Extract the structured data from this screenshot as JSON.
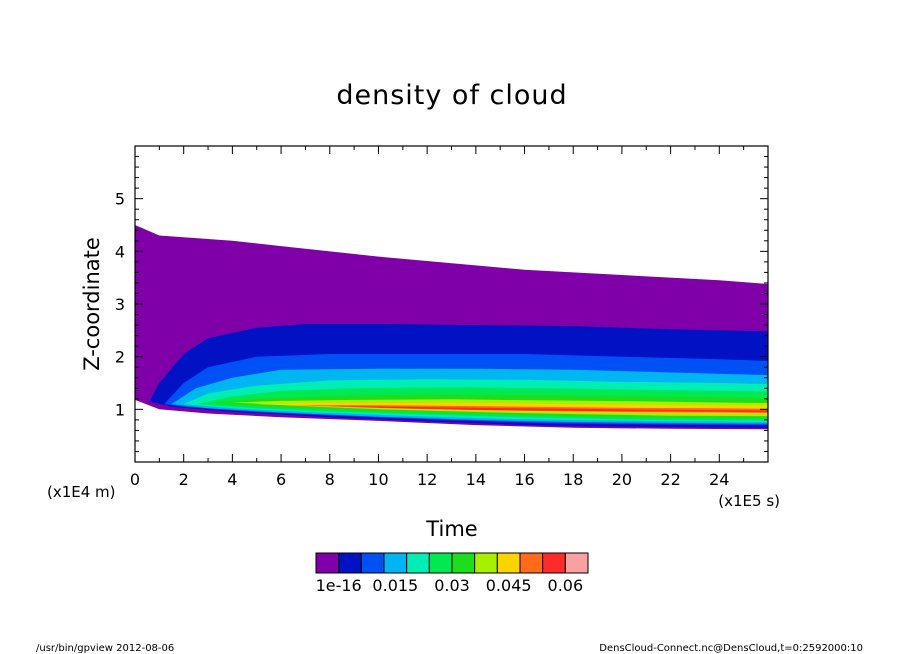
{
  "chart_data": {
    "type": "contour",
    "title": "density of cloud",
    "xlabel": "Time",
    "ylabel": "Z-coordinate",
    "x_unit": "(x1E5 s)",
    "y_unit": "(x1E4 m)",
    "xlim": [
      0,
      26
    ],
    "ylim": [
      0,
      6
    ],
    "x_ticks": [
      "0",
      "2",
      "4",
      "6",
      "8",
      "10",
      "12",
      "14",
      "16",
      "18",
      "20",
      "22",
      "24"
    ],
    "y_ticks": [
      "1",
      "2",
      "3",
      "4",
      "5"
    ],
    "colorbar": {
      "colors": [
        "#7f00a8",
        "#0012c4",
        "#0051f5",
        "#00b6f2",
        "#00eeb5",
        "#00e852",
        "#1edd1c",
        "#a6f000",
        "#fbd400",
        "#ff6a1c",
        "#ff2a2a",
        "#f9a0a0"
      ],
      "labels": [
        "1e-16",
        "0.015",
        "0.03",
        "0.045",
        "0.06"
      ]
    },
    "contours": [
      {
        "level": 0,
        "upper": [
          [
            0,
            4.5
          ],
          [
            1,
            4.3
          ],
          [
            4,
            4.2
          ],
          [
            6,
            4.1
          ],
          [
            10,
            3.9
          ],
          [
            16,
            3.65
          ],
          [
            20,
            3.55
          ],
          [
            24,
            3.45
          ],
          [
            26,
            3.38
          ]
        ],
        "lower": [
          [
            0,
            1.18
          ],
          [
            1,
            1.0
          ],
          [
            3,
            0.92
          ],
          [
            6,
            0.85
          ],
          [
            10,
            0.78
          ],
          [
            14,
            0.7
          ],
          [
            18,
            0.65
          ],
          [
            22,
            0.63
          ],
          [
            26,
            0.62
          ]
        ]
      },
      {
        "level": 1,
        "upper": [
          [
            0.6,
            1.15
          ],
          [
            1,
            1.5
          ],
          [
            2,
            2.05
          ],
          [
            3,
            2.35
          ],
          [
            5,
            2.55
          ],
          [
            7,
            2.62
          ],
          [
            10,
            2.62
          ],
          [
            14,
            2.6
          ],
          [
            18,
            2.58
          ],
          [
            22,
            2.52
          ],
          [
            26,
            2.48
          ]
        ],
        "lower": [
          [
            0.6,
            1.15
          ],
          [
            1.5,
            1.05
          ],
          [
            4,
            0.95
          ],
          [
            8,
            0.85
          ],
          [
            12,
            0.77
          ],
          [
            16,
            0.7
          ],
          [
            20,
            0.67
          ],
          [
            26,
            0.65
          ]
        ]
      },
      {
        "level": 2,
        "upper": [
          [
            1.2,
            1.1
          ],
          [
            2,
            1.5
          ],
          [
            3,
            1.8
          ],
          [
            5,
            2.0
          ],
          [
            8,
            2.05
          ],
          [
            12,
            2.05
          ],
          [
            16,
            2.05
          ],
          [
            20,
            2.0
          ],
          [
            24,
            1.95
          ],
          [
            26,
            1.92
          ]
        ],
        "lower": [
          [
            1.2,
            1.1
          ],
          [
            2,
            1.05
          ],
          [
            5,
            0.95
          ],
          [
            9,
            0.87
          ],
          [
            13,
            0.8
          ],
          [
            17,
            0.74
          ],
          [
            21,
            0.72
          ],
          [
            26,
            0.7
          ]
        ]
      },
      {
        "level": 3,
        "upper": [
          [
            1.5,
            1.1
          ],
          [
            2.5,
            1.4
          ],
          [
            4,
            1.6
          ],
          [
            6,
            1.75
          ],
          [
            10,
            1.77
          ],
          [
            14,
            1.77
          ],
          [
            18,
            1.75
          ],
          [
            22,
            1.7
          ],
          [
            26,
            1.65
          ]
        ],
        "lower": [
          [
            1.5,
            1.1
          ],
          [
            3,
            1.02
          ],
          [
            6,
            0.94
          ],
          [
            10,
            0.86
          ],
          [
            14,
            0.8
          ],
          [
            18,
            0.76
          ],
          [
            22,
            0.74
          ],
          [
            26,
            0.73
          ]
        ]
      },
      {
        "level": 4,
        "upper": [
          [
            2,
            1.1
          ],
          [
            3,
            1.3
          ],
          [
            5,
            1.45
          ],
          [
            8,
            1.55
          ],
          [
            12,
            1.57
          ],
          [
            16,
            1.56
          ],
          [
            20,
            1.52
          ],
          [
            24,
            1.5
          ],
          [
            26,
            1.48
          ]
        ],
        "lower": [
          [
            2,
            1.1
          ],
          [
            4,
            1.02
          ],
          [
            7,
            0.95
          ],
          [
            11,
            0.88
          ],
          [
            15,
            0.82
          ],
          [
            19,
            0.79
          ],
          [
            23,
            0.77
          ],
          [
            26,
            0.76
          ]
        ]
      },
      {
        "level": 5,
        "upper": [
          [
            2.5,
            1.1
          ],
          [
            4,
            1.25
          ],
          [
            6,
            1.35
          ],
          [
            9,
            1.4
          ],
          [
            13,
            1.42
          ],
          [
            17,
            1.4
          ],
          [
            21,
            1.37
          ],
          [
            24,
            1.35
          ],
          [
            26,
            1.34
          ]
        ],
        "lower": [
          [
            2.5,
            1.1
          ],
          [
            5,
            1.02
          ],
          [
            8,
            0.96
          ],
          [
            12,
            0.9
          ],
          [
            16,
            0.85
          ],
          [
            20,
            0.81
          ],
          [
            24,
            0.79
          ],
          [
            26,
            0.79
          ]
        ]
      },
      {
        "level": 6,
        "upper": [
          [
            3,
            1.12
          ],
          [
            5,
            1.2
          ],
          [
            8,
            1.25
          ],
          [
            12,
            1.28
          ],
          [
            16,
            1.27
          ],
          [
            20,
            1.25
          ],
          [
            24,
            1.23
          ],
          [
            26,
            1.22
          ]
        ],
        "lower": [
          [
            3,
            1.12
          ],
          [
            6,
            1.04
          ],
          [
            9,
            0.98
          ],
          [
            13,
            0.93
          ],
          [
            17,
            0.88
          ],
          [
            21,
            0.85
          ],
          [
            24,
            0.83
          ],
          [
            26,
            0.83
          ]
        ]
      },
      {
        "level": 7,
        "upper": [
          [
            4,
            1.13
          ],
          [
            6,
            1.16
          ],
          [
            9,
            1.18
          ],
          [
            13,
            1.19
          ],
          [
            17,
            1.17
          ],
          [
            21,
            1.15
          ],
          [
            24,
            1.13
          ],
          [
            26,
            1.12
          ]
        ],
        "lower": [
          [
            4,
            1.13
          ],
          [
            7,
            1.06
          ],
          [
            10,
            1.0
          ],
          [
            14,
            0.95
          ],
          [
            18,
            0.91
          ],
          [
            22,
            0.88
          ],
          [
            26,
            0.87
          ]
        ]
      },
      {
        "level": 8,
        "upper": [
          [
            5,
            1.1
          ],
          [
            7,
            1.12
          ],
          [
            10,
            1.12
          ],
          [
            14,
            1.12
          ],
          [
            18,
            1.1
          ],
          [
            22,
            1.08
          ],
          [
            26,
            1.07
          ]
        ],
        "lower": [
          [
            5,
            1.1
          ],
          [
            8,
            1.05
          ],
          [
            11,
            1.01
          ],
          [
            15,
            0.97
          ],
          [
            19,
            0.94
          ],
          [
            23,
            0.92
          ],
          [
            26,
            0.91
          ]
        ]
      },
      {
        "level": 9,
        "upper": [
          [
            6.5,
            1.08
          ],
          [
            9,
            1.08
          ],
          [
            12,
            1.07
          ],
          [
            16,
            1.05
          ],
          [
            20,
            1.03
          ],
          [
            24,
            1.02
          ],
          [
            26,
            1.01
          ]
        ],
        "lower": [
          [
            6.5,
            1.08
          ],
          [
            9,
            1.04
          ],
          [
            12,
            1.0
          ],
          [
            16,
            0.97
          ],
          [
            20,
            0.95
          ],
          [
            24,
            0.94
          ],
          [
            26,
            0.93
          ]
        ]
      },
      {
        "level": 10,
        "upper": [
          [
            8,
            1.06
          ],
          [
            11,
            1.05
          ],
          [
            14,
            1.03
          ],
          [
            18,
            1.01
          ],
          [
            22,
            0.99
          ],
          [
            26,
            0.98
          ]
        ],
        "lower": [
          [
            8,
            1.06
          ],
          [
            11,
            1.02
          ],
          [
            14,
            0.99
          ],
          [
            18,
            0.97
          ],
          [
            22,
            0.96
          ],
          [
            26,
            0.95
          ]
        ]
      }
    ]
  },
  "footer": {
    "left": "/usr/bin/gpview  2012-08-06",
    "right": "DensCloud-Connect.nc@DensCloud,t=0:2592000:10"
  }
}
